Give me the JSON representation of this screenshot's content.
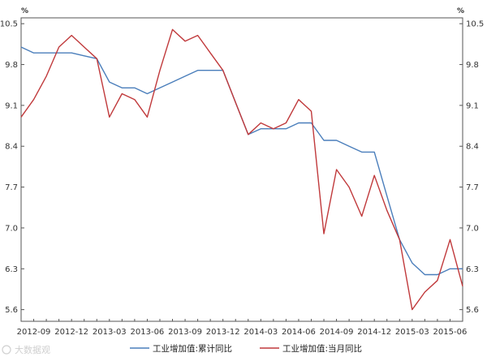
{
  "chart_data": {
    "type": "line",
    "title": "",
    "unit_left": "%",
    "unit_right": "%",
    "ylim": [
      5.4,
      10.6
    ],
    "yticks": [
      "10.5",
      "9.8",
      "9.1",
      "8.4",
      "7.7",
      "7.0",
      "6.3",
      "5.6"
    ],
    "ytick_values": [
      10.5,
      9.8,
      9.1,
      8.4,
      7.7,
      7.0,
      6.3,
      5.6
    ],
    "xtick_labels": [
      "2012-09",
      "2012-12",
      "2013-03",
      "2013-06",
      "2013-09",
      "2013-12",
      "2014-03",
      "2014-06",
      "2014-09",
      "2014-12",
      "2015-03",
      "2015-06"
    ],
    "grid": false,
    "legend_position": "bottom",
    "x": [
      "2012-08",
      "2012-09",
      "2012-10",
      "2012-11",
      "2012-12",
      "2013-01",
      "2013-02",
      "2013-03",
      "2013-04",
      "2013-05",
      "2013-06",
      "2013-07",
      "2013-08",
      "2013-09",
      "2013-10",
      "2013-11",
      "2013-12",
      "2014-01",
      "2014-02",
      "2014-03",
      "2014-04",
      "2014-05",
      "2014-06",
      "2014-07",
      "2014-08",
      "2014-09",
      "2014-10",
      "2014-11",
      "2014-12",
      "2015-01",
      "2015-02",
      "2015-03",
      "2015-04",
      "2015-05",
      "2015-06",
      "2015-07"
    ],
    "series": [
      {
        "name": "工业增加值:累计同比",
        "color": "#4a7ebb",
        "values": [
          10.1,
          10.0,
          10.0,
          10.0,
          10.0,
          9.95,
          9.9,
          9.5,
          9.4,
          9.4,
          9.3,
          9.4,
          9.5,
          9.6,
          9.7,
          9.7,
          9.7,
          9.15,
          8.6,
          8.7,
          8.7,
          8.7,
          8.8,
          8.8,
          8.5,
          8.5,
          8.4,
          8.3,
          8.3,
          7.55,
          6.8,
          6.4,
          6.2,
          6.2,
          6.3,
          6.3
        ]
      },
      {
        "name": "工业增加值:当月同比",
        "color": "#c0393b",
        "values": [
          8.9,
          9.2,
          9.6,
          10.1,
          10.3,
          10.1,
          9.9,
          8.9,
          9.3,
          9.2,
          8.9,
          9.7,
          10.4,
          10.2,
          10.3,
          10.0,
          9.7,
          9.15,
          8.6,
          8.8,
          8.7,
          8.8,
          9.2,
          9.0,
          6.9,
          8.0,
          7.7,
          7.2,
          7.9,
          7.3,
          6.8,
          5.6,
          5.9,
          6.1,
          6.8,
          6.0
        ]
      }
    ]
  },
  "watermark": "大数据观"
}
